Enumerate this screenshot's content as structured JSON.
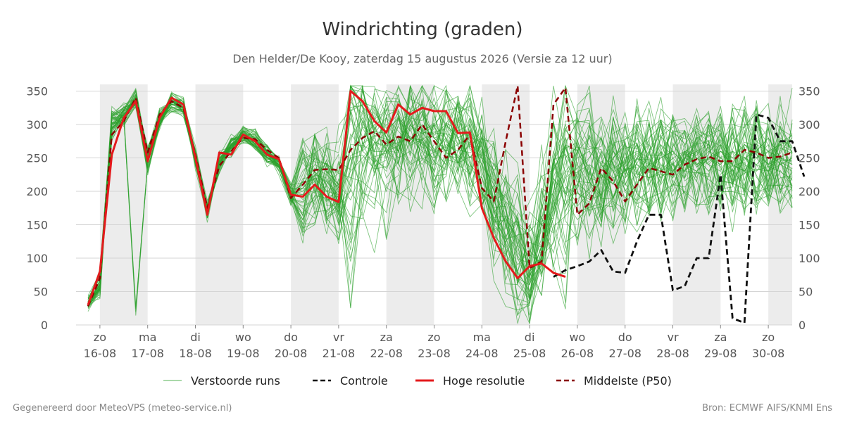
{
  "title": "Windrichting (graden)",
  "subtitle": "Den Helder/De Kooy, zaterdag 15 augustus 2026 (Versie za 12 uur)",
  "footer_left": "Gegenereerd door MeteoVPS (meteo-service.nl)",
  "footer_right": "Bron: ECMWF AIFS/KNMI Ens",
  "legend": [
    {
      "label": "Verstoorde runs",
      "color": "#2ca02c",
      "style": "thin-solid"
    },
    {
      "label": "Controle",
      "color": "#111111",
      "style": "dashed"
    },
    {
      "label": "Hoge resolutie",
      "color": "#e41a1c",
      "style": "solid"
    },
    {
      "label": "Middelste (P50)",
      "color": "#8b0000",
      "style": "dashed"
    }
  ],
  "chart_data": {
    "type": "line",
    "title": "Windrichting (graden)",
    "ylim": [
      0,
      360
    ],
    "xlim": [
      "2026-08-15 12:00",
      "2026-08-30 12:00"
    ],
    "y_ticks": [
      0,
      50,
      100,
      150,
      200,
      250,
      300,
      350
    ],
    "x_ticks": [
      {
        "day": "zo",
        "date": "16-08"
      },
      {
        "day": "ma",
        "date": "17-08"
      },
      {
        "day": "di",
        "date": "18-08"
      },
      {
        "day": "wo",
        "date": "19-08"
      },
      {
        "day": "do",
        "date": "20-08"
      },
      {
        "day": "vr",
        "date": "21-08"
      },
      {
        "day": "za",
        "date": "22-08"
      },
      {
        "day": "zo",
        "date": "23-08"
      },
      {
        "day": "ma",
        "date": "24-08"
      },
      {
        "day": "di",
        "date": "25-08"
      },
      {
        "day": "wo",
        "date": "26-08"
      },
      {
        "day": "do",
        "date": "27-08"
      },
      {
        "day": "vr",
        "date": "28-08"
      },
      {
        "day": "za",
        "date": "29-08"
      },
      {
        "day": "zo",
        "date": "30-08"
      }
    ],
    "grid": true,
    "legend_position": "bottom",
    "series": [
      {
        "name": "Hoge resolutie",
        "color": "#e41a1c",
        "x": [
          "2026-08-15 18:00",
          "2026-08-16 00:00",
          "2026-08-16 06:00",
          "2026-08-16 12:00",
          "2026-08-16 18:00",
          "2026-08-17 00:00",
          "2026-08-17 06:00",
          "2026-08-17 12:00",
          "2026-08-17 18:00",
          "2026-08-18 00:00",
          "2026-08-18 06:00",
          "2026-08-18 12:00",
          "2026-08-18 18:00",
          "2026-08-19 00:00",
          "2026-08-19 06:00",
          "2026-08-19 12:00",
          "2026-08-19 18:00",
          "2026-08-20 00:00",
          "2026-08-20 06:00",
          "2026-08-20 12:00",
          "2026-08-20 18:00",
          "2026-08-21 00:00",
          "2026-08-21 06:00",
          "2026-08-21 12:00",
          "2026-08-21 18:00",
          "2026-08-22 00:00",
          "2026-08-22 06:00",
          "2026-08-22 12:00",
          "2026-08-22 18:00",
          "2026-08-23 00:00",
          "2026-08-23 06:00",
          "2026-08-23 12:00",
          "2026-08-23 18:00",
          "2026-08-24 00:00",
          "2026-08-24 06:00",
          "2026-08-24 12:00",
          "2026-08-24 18:00",
          "2026-08-25 00:00",
          "2026-08-25 06:00",
          "2026-08-25 12:00",
          "2026-08-25 18:00"
        ],
        "y": [
          30,
          80,
          255,
          310,
          335,
          245,
          310,
          340,
          330,
          250,
          165,
          258,
          255,
          285,
          275,
          255,
          248,
          195,
          192,
          210,
          192,
          184,
          350,
          335,
          305,
          288,
          330,
          315,
          325,
          320,
          320,
          287,
          288,
          175,
          130,
          95,
          70,
          88,
          92,
          78,
          72
        ]
      },
      {
        "name": "Controle",
        "color": "#111111",
        "x": [
          "2026-08-25 12:00",
          "2026-08-25 18:00",
          "2026-08-26 00:00",
          "2026-08-26 06:00",
          "2026-08-26 12:00",
          "2026-08-26 18:00",
          "2026-08-27 00:00",
          "2026-08-27 06:00",
          "2026-08-27 12:00",
          "2026-08-27 18:00",
          "2026-08-28 00:00",
          "2026-08-28 06:00",
          "2026-08-28 12:00",
          "2026-08-28 18:00",
          "2026-08-29 00:00",
          "2026-08-29 06:00",
          "2026-08-29 12:00",
          "2026-08-29 18:00",
          "2026-08-30 00:00",
          "2026-08-30 06:00",
          "2026-08-30 12:00",
          "2026-08-30 18:00"
        ],
        "y": [
          72,
          82,
          88,
          95,
          112,
          80,
          78,
          125,
          165,
          165,
          52,
          58,
          100,
          100,
          225,
          10,
          3,
          315,
          310,
          275,
          275,
          222
        ]
      },
      {
        "name": "Middelste (P50)",
        "color": "#8b0000",
        "x": [
          "2026-08-15 18:00",
          "2026-08-16 00:00",
          "2026-08-16 06:00",
          "2026-08-16 12:00",
          "2026-08-16 18:00",
          "2026-08-17 00:00",
          "2026-08-17 06:00",
          "2026-08-17 12:00",
          "2026-08-17 18:00",
          "2026-08-18 00:00",
          "2026-08-18 06:00",
          "2026-08-18 12:00",
          "2026-08-18 18:00",
          "2026-08-19 00:00",
          "2026-08-19 06:00",
          "2026-08-19 12:00",
          "2026-08-19 18:00",
          "2026-08-20 00:00",
          "2026-08-20 06:00",
          "2026-08-20 12:00",
          "2026-08-20 18:00",
          "2026-08-21 00:00",
          "2026-08-21 06:00",
          "2026-08-21 12:00",
          "2026-08-21 18:00",
          "2026-08-22 00:00",
          "2026-08-22 06:00",
          "2026-08-22 12:00",
          "2026-08-22 18:00",
          "2026-08-23 00:00",
          "2026-08-23 06:00",
          "2026-08-23 12:00",
          "2026-08-23 18:00",
          "2026-08-24 00:00",
          "2026-08-24 06:00",
          "2026-08-24 12:00",
          "2026-08-24 18:00",
          "2026-08-25 00:00",
          "2026-08-25 06:00",
          "2026-08-25 12:00",
          "2026-08-25 18:00",
          "2026-08-26 00:00",
          "2026-08-26 06:00",
          "2026-08-26 12:00",
          "2026-08-26 18:00",
          "2026-08-27 00:00",
          "2026-08-27 06:00",
          "2026-08-27 12:00",
          "2026-08-27 18:00",
          "2026-08-28 00:00",
          "2026-08-28 06:00",
          "2026-08-28 12:00",
          "2026-08-28 18:00",
          "2026-08-29 00:00",
          "2026-08-29 06:00",
          "2026-08-29 12:00",
          "2026-08-29 18:00",
          "2026-08-30 00:00",
          "2026-08-30 06:00",
          "2026-08-30 12:00"
        ],
        "y": [
          28,
          70,
          285,
          305,
          340,
          258,
          315,
          335,
          325,
          255,
          175,
          238,
          260,
          280,
          278,
          262,
          250,
          190,
          210,
          232,
          233,
          232,
          262,
          280,
          290,
          270,
          282,
          275,
          300,
          275,
          250,
          262,
          285,
          205,
          185,
          275,
          358,
          85,
          95,
          330,
          355,
          165,
          182,
          235,
          215,
          185,
          210,
          235,
          230,
          225,
          240,
          248,
          252,
          245,
          245,
          262,
          258,
          250,
          252,
          258
        ]
      }
    ],
    "ensemble": {
      "name": "Verstoorde runs",
      "color": "#2ca02c",
      "count": 50,
      "description_only": false,
      "x_start": "2026-08-15 18:00",
      "x_step_hours": 6,
      "members": [
        [
          35,
          60,
          300,
          320,
          330,
          250,
          300,
          335,
          325,
          245,
          170,
          240,
          275,
          285,
          265,
          250,
          235,
          195,
          205,
          220,
          200,
          195,
          310,
          260,
          280,
          300,
          240,
          315,
          290,
          280,
          260,
          300,
          240,
          220,
          150,
          200,
          120,
          90,
          170,
          260,
          210,
          180,
          240,
          160,
          250,
          200,
          230,
          260,
          210,
          240,
          220,
          250,
          230,
          260,
          240,
          270,
          255,
          240,
          250,
          245,
          230
        ],
        [
          30,
          55,
          320,
          310,
          20,
          240,
          320,
          330,
          330,
          250,
          160,
          250,
          265,
          290,
          280,
          260,
          240,
          190,
          210,
          240,
          230,
          210,
          340,
          280,
          300,
          250,
          310,
          290,
          320,
          260,
          280,
          230,
          300,
          250,
          200,
          150,
          100,
          60,
          120,
          300,
          250,
          200,
          170,
          240,
          280,
          210,
          250,
          230,
          250,
          260,
          240,
          230,
          250,
          270,
          250,
          230,
          260,
          280,
          250,
          260,
          240
        ],
        [
          32,
          65,
          290,
          325,
          350,
          255,
          310,
          325,
          320,
          255,
          175,
          235,
          270,
          280,
          270,
          245,
          245,
          200,
          195,
          230,
          210,
          180,
          200,
          300,
          330,
          280,
          260,
          300,
          270,
          240,
          300,
          280,
          250,
          280,
          230,
          180,
          60,
          40,
          200,
          150,
          90,
          260,
          300,
          220,
          190,
          240,
          270,
          210,
          240,
          220,
          250,
          260,
          240,
          230,
          210,
          250,
          240,
          230,
          260,
          280,
          250
        ],
        [
          28,
          50,
          310,
          300,
          335,
          235,
          300,
          340,
          335,
          240,
          165,
          255,
          260,
          295,
          285,
          255,
          230,
          185,
          215,
          250,
          240,
          230,
          320,
          330,
          260,
          310,
          290,
          270,
          300,
          280,
          260,
          310,
          280,
          200,
          160,
          130,
          90,
          110,
          140,
          200,
          280,
          230,
          200,
          260,
          230,
          190,
          210,
          240,
          270,
          230,
          260,
          240,
          250,
          240,
          280,
          260,
          250,
          270,
          240,
          230,
          260
        ],
        [
          40,
          70,
          280,
          315,
          340,
          260,
          315,
          330,
          325,
          260,
          180,
          245,
          280,
          275,
          275,
          265,
          250,
          205,
          200,
          215,
          190,
          200,
          150,
          220,
          290,
          330,
          270,
          240,
          250,
          300,
          320,
          270,
          310,
          260,
          240,
          210,
          150,
          80,
          100,
          250,
          300,
          240,
          210,
          190,
          260,
          230,
          240,
          220,
          230,
          250,
          230,
          260,
          270,
          250,
          240,
          230,
          270,
          260,
          240,
          250,
          270
        ],
        [
          30,
          60,
          305,
          320,
          330,
          250,
          305,
          335,
          330,
          250,
          170,
          245,
          270,
          285,
          275,
          255,
          245,
          195,
          200,
          225,
          220,
          190,
          100,
          180,
          250,
          230,
          300,
          320,
          280,
          260,
          240,
          290,
          300,
          230,
          170,
          120,
          80,
          50,
          90,
          180,
          220,
          260,
          280,
          240,
          210,
          250,
          260,
          250,
          220,
          240,
          260,
          250,
          230,
          250,
          260,
          240,
          230,
          250,
          270,
          260,
          250
        ],
        [
          35,
          45,
          310,
          310,
          345,
          245,
          310,
          330,
          325,
          250,
          175,
          250,
          265,
          280,
          280,
          255,
          240,
          200,
          210,
          235,
          225,
          205,
          250,
          200,
          180,
          260,
          240,
          220,
          260,
          300,
          280,
          250,
          270,
          280,
          220,
          170,
          110,
          70,
          130,
          220,
          180,
          210,
          250,
          280,
          240,
          220,
          250,
          270,
          240,
          230,
          250,
          240,
          260,
          250,
          230,
          250,
          260,
          240,
          250,
          240,
          270
        ],
        [
          30,
          55,
          295,
          305,
          335,
          230,
          300,
          340,
          330,
          245,
          165,
          240,
          275,
          290,
          270,
          250,
          245,
          190,
          205,
          230,
          200,
          210,
          280,
          310,
          250,
          200,
          260,
          300,
          320,
          280,
          260,
          270,
          220,
          180,
          140,
          100,
          70,
          60,
          110,
          160,
          240,
          270,
          230,
          210,
          250,
          270,
          240,
          230,
          260,
          240,
          230,
          250,
          240,
          260,
          250,
          270,
          250,
          230,
          240,
          250,
          260
        ],
        [
          38,
          75,
          315,
          325,
          330,
          260,
          310,
          325,
          320,
          255,
          170,
          255,
          260,
          285,
          285,
          260,
          240,
          195,
          195,
          220,
          215,
          185,
          320,
          340,
          310,
          280,
          250,
          260,
          240,
          270,
          300,
          280,
          290,
          250,
          200,
          160,
          130,
          100,
          150,
          230,
          270,
          220,
          190,
          230,
          260,
          240,
          220,
          240,
          250,
          260,
          240,
          230,
          250,
          240,
          260,
          250,
          240,
          260,
          270,
          240,
          230
        ],
        [
          33,
          60,
          300,
          315,
          340,
          250,
          305,
          335,
          325,
          250,
          170,
          245,
          270,
          285,
          275,
          255,
          240,
          195,
          205,
          225,
          215,
          195,
          230,
          250,
          270,
          290,
          310,
          280,
          260,
          250,
          270,
          260,
          280,
          240,
          210,
          190,
          170,
          140,
          160,
          200,
          230,
          250,
          260,
          240,
          220,
          230,
          250,
          240,
          230,
          250,
          260,
          240,
          250,
          260,
          240,
          230,
          250,
          260,
          250,
          240,
          250
        ]
      ]
    }
  }
}
